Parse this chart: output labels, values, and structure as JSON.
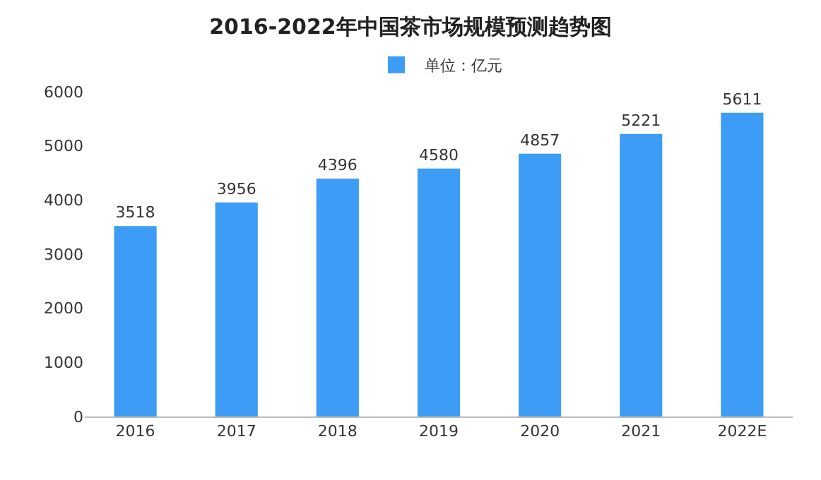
{
  "chart_data": {
    "type": "bar",
    "title": "2016-2022年中国茶市场规模预测趋势图",
    "categories": [
      "2016",
      "2017",
      "2018",
      "2019",
      "2020",
      "2021",
      "2022E"
    ],
    "series": [
      {
        "name": "单位：亿元",
        "color": "#3d9cf5",
        "values": [
          3518,
          3956,
          4396,
          4580,
          4857,
          5221,
          5611
        ]
      }
    ],
    "ylim": [
      0,
      6000
    ],
    "yticks": [
      0,
      1000,
      2000,
      3000,
      4000,
      5000,
      6000
    ],
    "data_labels": true,
    "legend": "top",
    "grid": false
  }
}
